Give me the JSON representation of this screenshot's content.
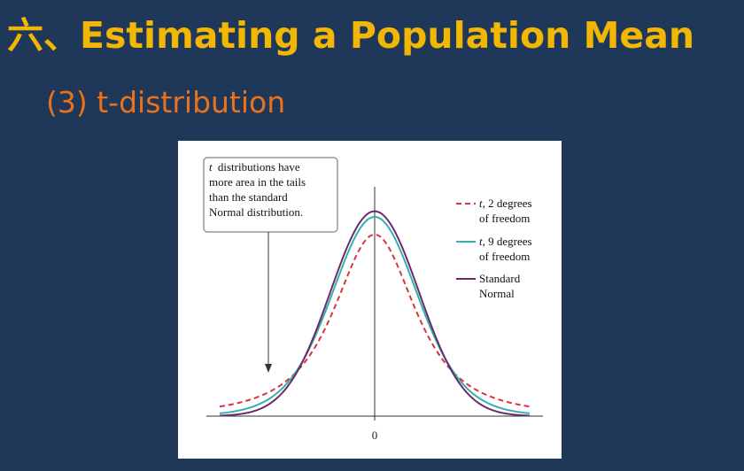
{
  "slide": {
    "title": "六、Estimating a Population Mean",
    "subtitle": "(3) t-distribution"
  },
  "chart_data": {
    "type": "line",
    "title": "",
    "xlabel": "",
    "ylabel": "",
    "x_tick_labels": [
      "0"
    ],
    "xlim": [
      -3.5,
      3.5
    ],
    "grid": false,
    "legend": "right",
    "annotation": {
      "lines": [
        "distributions have",
        "more area in the tails",
        "than the standard",
        "Normal distribution."
      ],
      "italic_prefix": "t",
      "points_to": "left tail"
    },
    "series": [
      {
        "name_italic": "t",
        "name": ", 2 degrees",
        "name_line2": "of freedom",
        "df": 2,
        "color": "#d8343f",
        "dash": "dashed"
      },
      {
        "name_italic": "t",
        "name": ", 9 degrees",
        "name_line2": "of freedom",
        "df": 9,
        "color": "#35b0ad",
        "dash": "solid"
      },
      {
        "name_italic": "",
        "name": "Standard",
        "name_line2": "Normal",
        "df": null,
        "color": "#6b2b6b",
        "dash": "solid"
      }
    ]
  }
}
